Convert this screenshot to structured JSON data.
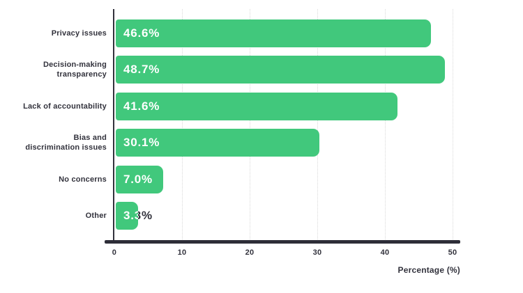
{
  "chart_data": {
    "type": "bar",
    "orientation": "horizontal",
    "title": "",
    "categories": [
      "Privacy issues",
      "Decision-making transparency",
      "Lack of accountability",
      "Bias and discrimination issues",
      "No concerns",
      "Other"
    ],
    "category_lines": [
      [
        "Privacy issues"
      ],
      [
        "Decision-making",
        "transparency"
      ],
      [
        "Lack of accountability"
      ],
      [
        "Bias and",
        "discrimination issues"
      ],
      [
        "No concerns"
      ],
      [
        "Other"
      ]
    ],
    "values": [
      46.6,
      48.7,
      41.6,
      30.1,
      7.0,
      3.3
    ],
    "value_labels": [
      "46.6%",
      "48.7%",
      "41.6%",
      "30.1%",
      "7.0%",
      "3.3%"
    ],
    "xlabel": "Percentage (%)",
    "xlim": [
      0,
      50
    ],
    "xticks": [
      0,
      10,
      20,
      30,
      40,
      50
    ],
    "grid": "vertical-dotted",
    "legend": "none",
    "colors": {
      "bar": "#41c87c",
      "value_text": "#ffffff",
      "value_text_overflow": "#32323c",
      "axis": "#2e2e38",
      "label_text": "#32323c",
      "gridline": "#d9d9d9",
      "background": "#ffffff"
    }
  }
}
